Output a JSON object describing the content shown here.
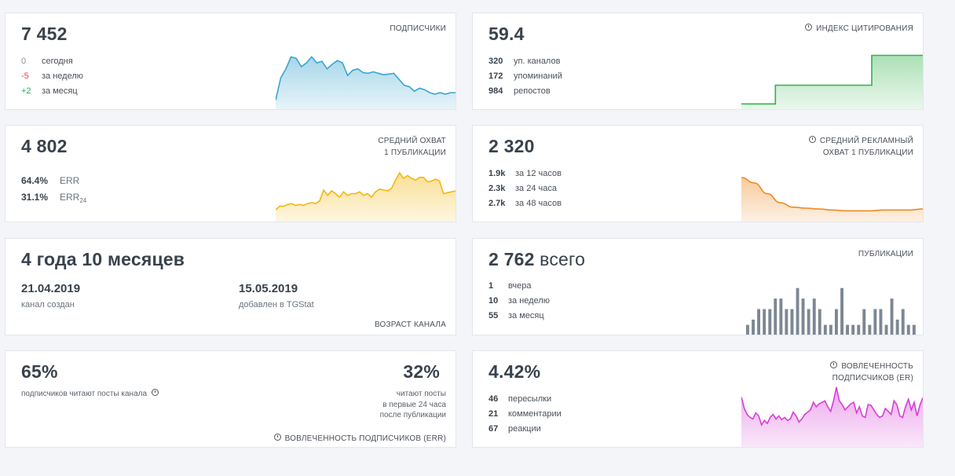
{
  "subscribers": {
    "value": "7 452",
    "label": "ПОДПИСЧИКИ",
    "stats": [
      {
        "value": "0",
        "text": "сегодня",
        "color": "#8a93a0"
      },
      {
        "value": "-5",
        "text": "за неделю",
        "color": "#e04a4a"
      },
      {
        "value": "+2",
        "text": "за месяц",
        "color": "#25b060"
      }
    ]
  },
  "citation": {
    "value": "59.4",
    "label": "ИНДЕКС ЦИТИРОВАНИЯ",
    "stats": [
      {
        "value": "320",
        "text": "уп. каналов"
      },
      {
        "value": "172",
        "text": "упоминаний"
      },
      {
        "value": "984",
        "text": "репостов"
      }
    ]
  },
  "avg_reach": {
    "value": "4 802",
    "label_line1": "СРЕДНИЙ ОХВАТ",
    "label_line2": "1 ПУБЛИКАЦИИ",
    "err": [
      {
        "value": "64.4%",
        "text": "ERR"
      },
      {
        "value": "31.1%",
        "text": "ERR",
        "sub": "24"
      }
    ]
  },
  "ad_reach": {
    "value": "2 320",
    "label_line1": "СРЕДНИЙ РЕКЛАМНЫЙ",
    "label_line2": "ОХВАТ 1 ПУБЛИКАЦИИ",
    "stats": [
      {
        "value": "1.9k",
        "text": "за 12 часов"
      },
      {
        "value": "2.3k",
        "text": "за 24 часа"
      },
      {
        "value": "2.7k",
        "text": "за 48 часов"
      }
    ]
  },
  "age": {
    "value": "4 года 10 месяцев",
    "created_date": "21.04.2019",
    "created_label": "канал создан",
    "added_date": "15.05.2019",
    "added_label": "добавлен в TGStat",
    "label": "ВОЗРАСТ КАНАЛА"
  },
  "publications": {
    "value": "2 762",
    "value_suffix": "всего",
    "label": "ПУБЛИКАЦИИ",
    "stats": [
      {
        "value": "1",
        "text": "вчера"
      },
      {
        "value": "10",
        "text": "за неделю"
      },
      {
        "value": "55",
        "text": "за месяц"
      }
    ]
  },
  "engagement": {
    "left_value": "65%",
    "left_text": "подписчиков читают посты канала",
    "right_value": "32%",
    "right_line1": "читают посты",
    "right_line2": "в первые 24 часа",
    "right_line3": "после публикации",
    "label": "ВОВЛЕЧЕННОСТЬ ПОДПИСЧИКОВ (ERR)"
  },
  "er": {
    "value": "4.42%",
    "label_line1": "ВОВЛЕЧЕННОСТЬ",
    "label_line2": "ПОДПИСЧИКОВ (ER)",
    "stats": [
      {
        "value": "46",
        "text": "пересылки"
      },
      {
        "value": "21",
        "text": "комментарии"
      },
      {
        "value": "67",
        "text": "реакции"
      }
    ]
  },
  "colors": {
    "subscribers": "#3aa5cf",
    "citation": "#2fb34a",
    "reach": "#f2b711",
    "ad_reach": "#f08a24",
    "publications": "#7d8793",
    "er": "#d63ed6"
  },
  "chart_data": [
    {
      "type": "area",
      "series": [
        {
          "values": [
            10,
            40,
            52,
            68,
            66,
            55,
            60,
            68,
            60,
            62,
            52,
            58,
            63,
            60,
            43,
            50,
            52,
            47,
            46,
            48,
            46,
            44,
            45,
            46,
            38,
            30,
            28,
            22,
            26,
            24,
            20,
            18,
            20,
            18,
            20,
            20
          ]
        }
      ]
    },
    {
      "type": "area",
      "series": [
        {
          "values": [
            5,
            5,
            5,
            5,
            5,
            5,
            30,
            30,
            30,
            30,
            30,
            30,
            30,
            30,
            30,
            30,
            30,
            30,
            30,
            30,
            30,
            30,
            30,
            70,
            70,
            70,
            70,
            70,
            70,
            70,
            70,
            70,
            70
          ]
        }
      ]
    },
    {
      "type": "area",
      "series": [
        {
          "values": [
            12,
            16,
            16,
            18,
            19,
            17,
            18,
            17,
            19,
            20,
            19,
            22,
            34,
            28,
            33,
            30,
            26,
            32,
            28,
            30,
            30,
            32,
            28,
            30,
            26,
            32,
            35,
            34,
            33,
            36,
            45,
            53,
            47,
            50,
            47,
            45,
            48,
            48,
            43,
            44,
            46,
            44,
            30,
            31,
            32,
            33
          ]
        }
      ]
    },
    {
      "type": "area",
      "series": [
        {
          "values": [
            48,
            42,
            30,
            20,
            15,
            14,
            13,
            12,
            11,
            11,
            11,
            12,
            12,
            12,
            13
          ]
        }
      ]
    },
    {
      "type": "bar",
      "series": [
        {
          "values": [
            2,
            3,
            5,
            5,
            5,
            7,
            7,
            5,
            5,
            9,
            7,
            5,
            7,
            5,
            2,
            2,
            5,
            9,
            2,
            2,
            2,
            5,
            2,
            5,
            5,
            2,
            7,
            3,
            5,
            2,
            2,
            0
          ]
        }
      ]
    },
    {
      "type": "area",
      "series": [
        {
          "values": [
            65,
            50,
            42,
            38,
            36,
            44,
            40,
            28,
            34,
            30,
            38,
            42,
            36,
            40,
            35,
            38,
            34,
            36,
            45,
            40,
            32,
            36,
            42,
            45,
            48,
            58,
            52,
            56,
            58,
            60,
            52,
            46,
            60,
            78,
            60,
            55,
            48,
            52,
            56,
            58,
            44,
            52,
            40,
            38,
            55,
            54,
            48,
            42,
            38,
            40,
            50,
            46,
            42,
            60,
            55,
            40,
            38,
            52,
            62,
            48,
            58,
            40,
            54,
            64
          ]
        }
      ]
    }
  ]
}
